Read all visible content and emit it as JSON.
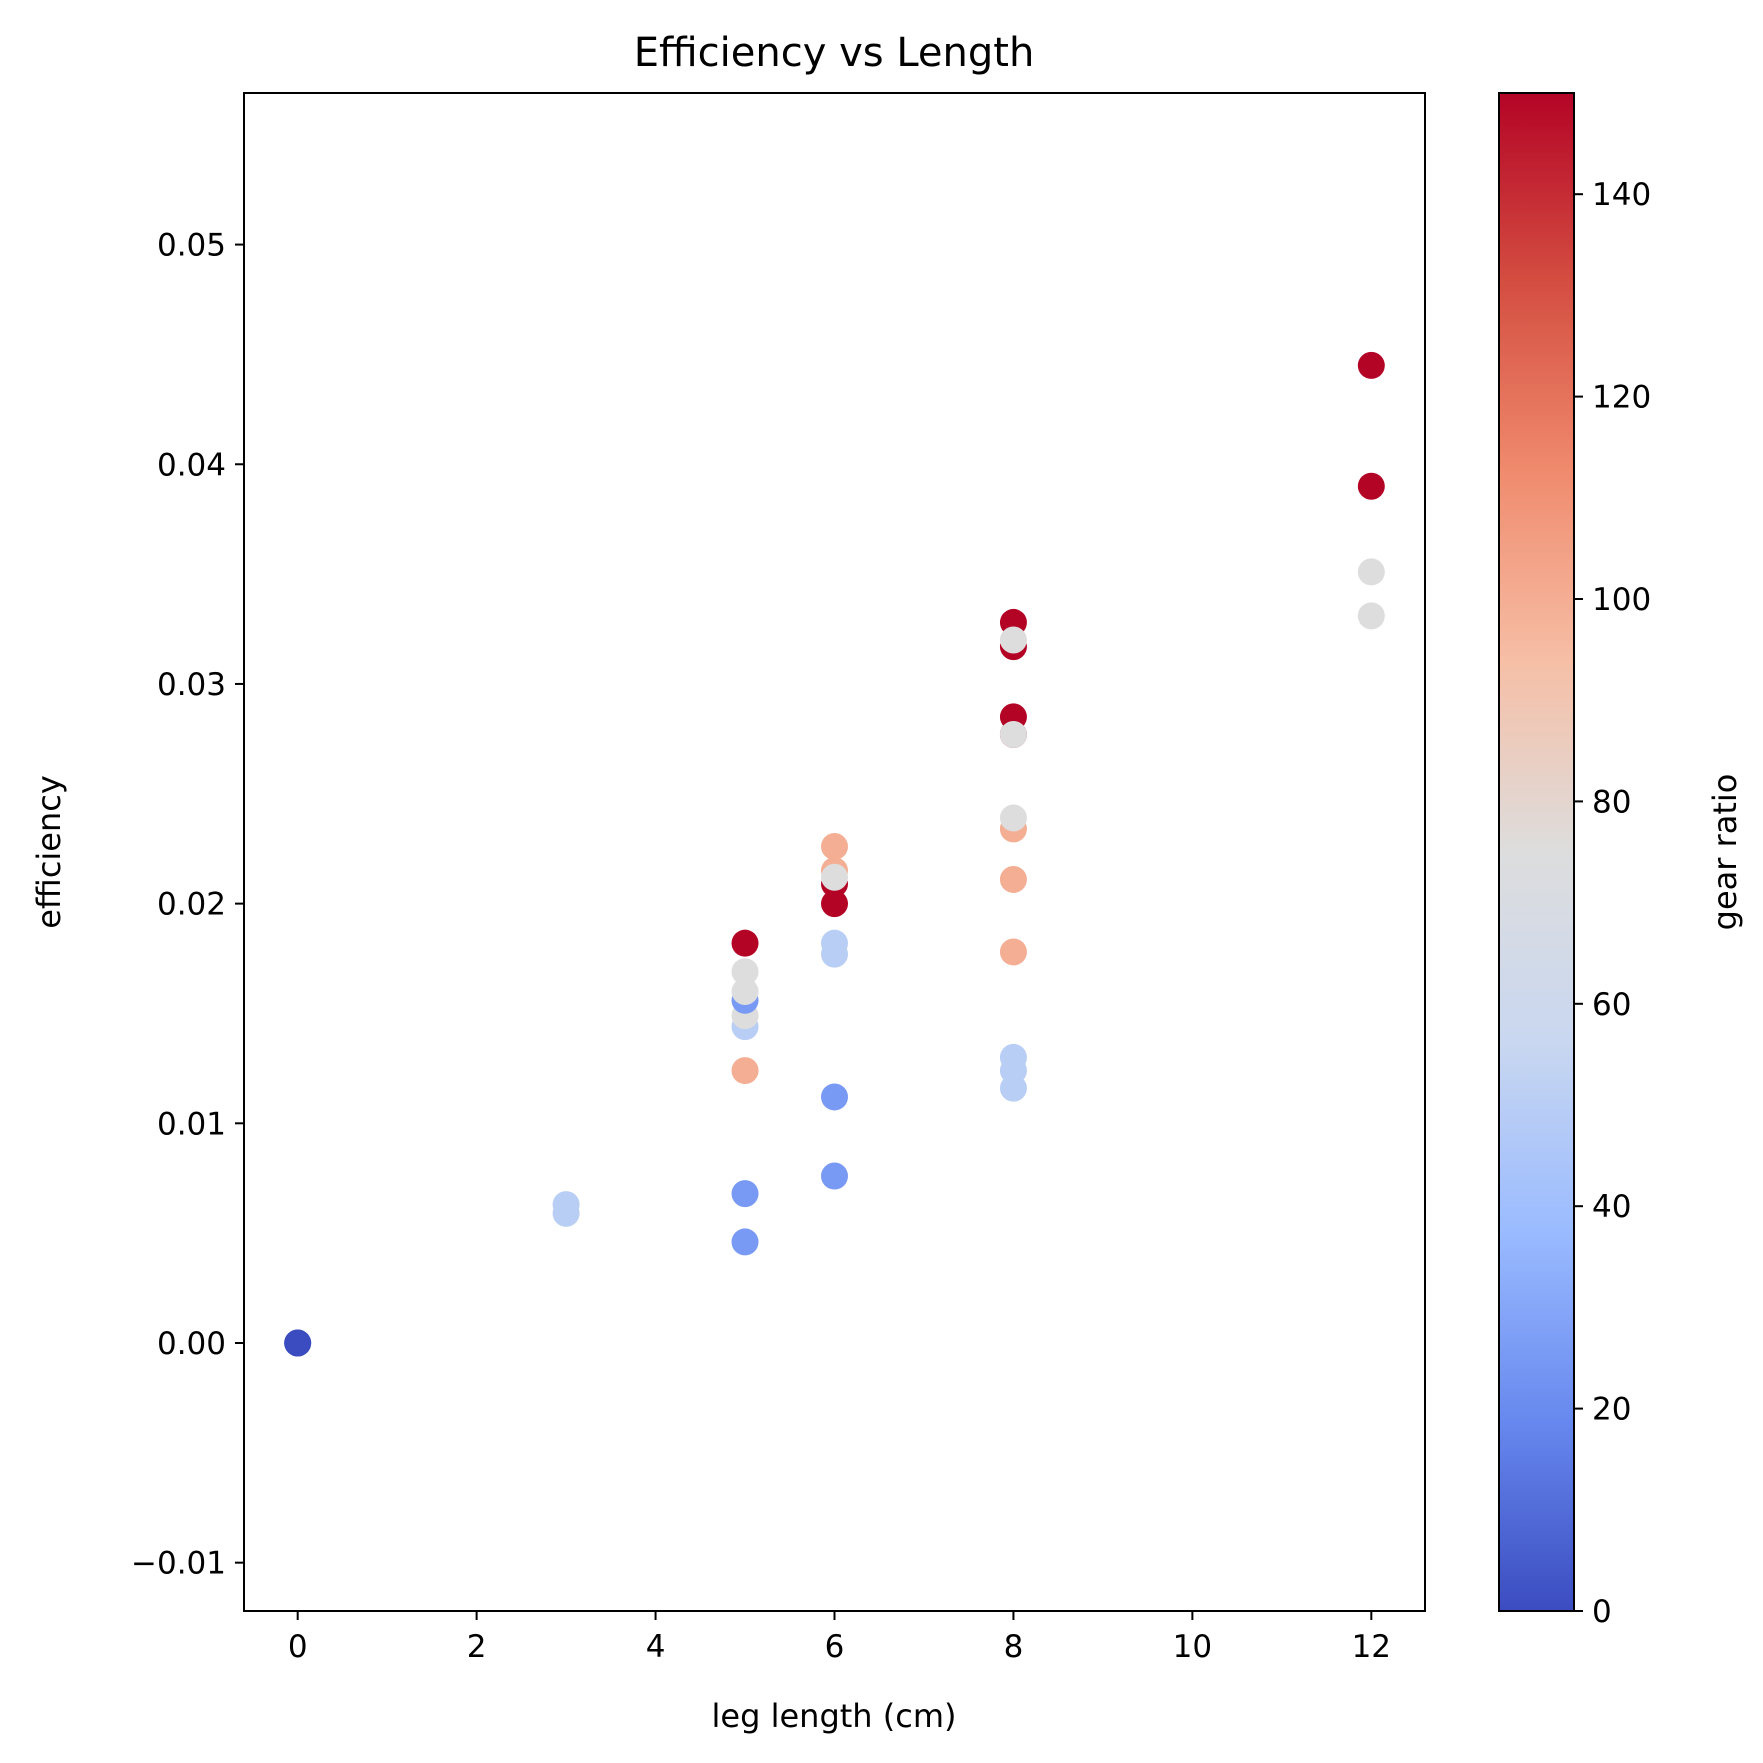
{
  "chart_data": {
    "type": "scatter",
    "title": "Efficiency vs Length",
    "xlabel": "leg length (cm)",
    "ylabel": "efficiency",
    "xlim": [
      -0.6,
      12.6
    ],
    "ylim": [
      -0.0122,
      0.0569
    ],
    "x_ticks": [
      {
        "value": 0,
        "label": "0"
      },
      {
        "value": 2,
        "label": "2"
      },
      {
        "value": 4,
        "label": "4"
      },
      {
        "value": 6,
        "label": "6"
      },
      {
        "value": 8,
        "label": "8"
      },
      {
        "value": 10,
        "label": "10"
      },
      {
        "value": 12,
        "label": "12"
      }
    ],
    "y_ticks": [
      {
        "value": -0.01,
        "label": "−0.01"
      },
      {
        "value": 0.0,
        "label": "0.00"
      },
      {
        "value": 0.01,
        "label": "0.01"
      },
      {
        "value": 0.02,
        "label": "0.02"
      },
      {
        "value": 0.03,
        "label": "0.03"
      },
      {
        "value": 0.04,
        "label": "0.04"
      },
      {
        "value": 0.05,
        "label": "0.05"
      }
    ],
    "grid": false,
    "colormap": "coolwarm",
    "colorbar": {
      "label": "gear ratio",
      "range": [
        0,
        150
      ],
      "ticks": [
        {
          "value": 0,
          "label": "0"
        },
        {
          "value": 20,
          "label": "20"
        },
        {
          "value": 40,
          "label": "40"
        },
        {
          "value": 60,
          "label": "60"
        },
        {
          "value": 80,
          "label": "80"
        },
        {
          "value": 100,
          "label": "100"
        },
        {
          "value": 120,
          "label": "120"
        },
        {
          "value": 140,
          "label": "140"
        }
      ],
      "stops": [
        "#3b4cc0",
        "#6788ee",
        "#9abbff",
        "#c9d7f0",
        "#dddddd",
        "#f6bfa6",
        "#f08b6e",
        "#d44e41",
        "#b40426"
      ]
    },
    "points": [
      {
        "x": 0,
        "y": 0.0,
        "c": 0
      },
      {
        "x": 0,
        "y": 0.0,
        "c": 0
      },
      {
        "x": 3,
        "y": 0.0059,
        "c": 50
      },
      {
        "x": 3,
        "y": 0.0063,
        "c": 50
      },
      {
        "x": 5,
        "y": 0.0046,
        "c": 25
      },
      {
        "x": 5,
        "y": 0.0068,
        "c": 25
      },
      {
        "x": 5,
        "y": 0.0124,
        "c": 100
      },
      {
        "x": 5,
        "y": 0.0144,
        "c": 50
      },
      {
        "x": 5,
        "y": 0.0149,
        "c": 75
      },
      {
        "x": 5,
        "y": 0.0156,
        "c": 25
      },
      {
        "x": 5,
        "y": 0.016,
        "c": 75
      },
      {
        "x": 5,
        "y": 0.0169,
        "c": 75
      },
      {
        "x": 5,
        "y": 0.0182,
        "c": 150
      },
      {
        "x": 6,
        "y": 0.0076,
        "c": 25
      },
      {
        "x": 6,
        "y": 0.0112,
        "c": 25
      },
      {
        "x": 6,
        "y": 0.0177,
        "c": 50
      },
      {
        "x": 6,
        "y": 0.0182,
        "c": 50
      },
      {
        "x": 6,
        "y": 0.02,
        "c": 150
      },
      {
        "x": 6,
        "y": 0.0209,
        "c": 150
      },
      {
        "x": 6,
        "y": 0.0215,
        "c": 100
      },
      {
        "x": 6,
        "y": 0.0226,
        "c": 100
      },
      {
        "x": 6,
        "y": 0.0212,
        "c": 75
      },
      {
        "x": 8,
        "y": 0.0116,
        "c": 50
      },
      {
        "x": 8,
        "y": 0.0124,
        "c": 50
      },
      {
        "x": 8,
        "y": 0.013,
        "c": 50
      },
      {
        "x": 8,
        "y": 0.0178,
        "c": 100
      },
      {
        "x": 8,
        "y": 0.0211,
        "c": 100
      },
      {
        "x": 8,
        "y": 0.0234,
        "c": 100
      },
      {
        "x": 8,
        "y": 0.0239,
        "c": 75
      },
      {
        "x": 8,
        "y": 0.0277,
        "c": 150
      },
      {
        "x": 8,
        "y": 0.0285,
        "c": 150
      },
      {
        "x": 8,
        "y": 0.0317,
        "c": 150
      },
      {
        "x": 8,
        "y": 0.0328,
        "c": 150
      },
      {
        "x": 8,
        "y": 0.0277,
        "c": 75
      },
      {
        "x": 8,
        "y": 0.032,
        "c": 75
      },
      {
        "x": 12,
        "y": 0.0331,
        "c": 75
      },
      {
        "x": 12,
        "y": 0.0351,
        "c": 75
      },
      {
        "x": 12,
        "y": 0.039,
        "c": 150
      },
      {
        "x": 12,
        "y": 0.0445,
        "c": 150
      }
    ]
  }
}
